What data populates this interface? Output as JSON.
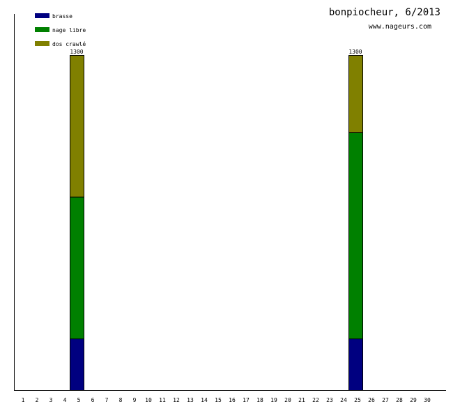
{
  "chart_data": {
    "type": "bar",
    "stacked": true,
    "title": "bonpiocheur, 6/2013",
    "subtitle": "www.nageurs.com",
    "xlabel": "",
    "ylabel": "",
    "categories": [
      "1",
      "2",
      "3",
      "4",
      "5",
      "6",
      "7",
      "8",
      "9",
      "10",
      "11",
      "12",
      "13",
      "14",
      "15",
      "16",
      "17",
      "18",
      "19",
      "20",
      "21",
      "22",
      "23",
      "24",
      "25",
      "26",
      "27",
      "28",
      "29",
      "30"
    ],
    "series": [
      {
        "name": "brasse",
        "color": "#000080",
        "values": [
          0,
          0,
          0,
          0,
          200,
          0,
          0,
          0,
          0,
          0,
          0,
          0,
          0,
          0,
          0,
          0,
          0,
          0,
          0,
          0,
          0,
          0,
          0,
          0,
          200,
          0,
          0,
          0,
          0,
          0
        ]
      },
      {
        "name": "nage libre",
        "color": "#008000",
        "values": [
          0,
          0,
          0,
          0,
          550,
          0,
          0,
          0,
          0,
          0,
          0,
          0,
          0,
          0,
          0,
          0,
          0,
          0,
          0,
          0,
          0,
          0,
          0,
          0,
          800,
          0,
          0,
          0,
          0,
          0
        ]
      },
      {
        "name": "dos crawlé",
        "color": "#808000",
        "values": [
          0,
          0,
          0,
          0,
          550,
          0,
          0,
          0,
          0,
          0,
          0,
          0,
          0,
          0,
          0,
          0,
          0,
          0,
          0,
          0,
          0,
          0,
          0,
          0,
          300,
          0,
          0,
          0,
          0,
          0
        ]
      }
    ],
    "totals": [
      {
        "category": "5",
        "label": "1300"
      },
      {
        "category": "25",
        "label": "1300"
      }
    ],
    "ylim": [
      0,
      1300
    ],
    "grid": false,
    "legend_position": "top-left"
  }
}
